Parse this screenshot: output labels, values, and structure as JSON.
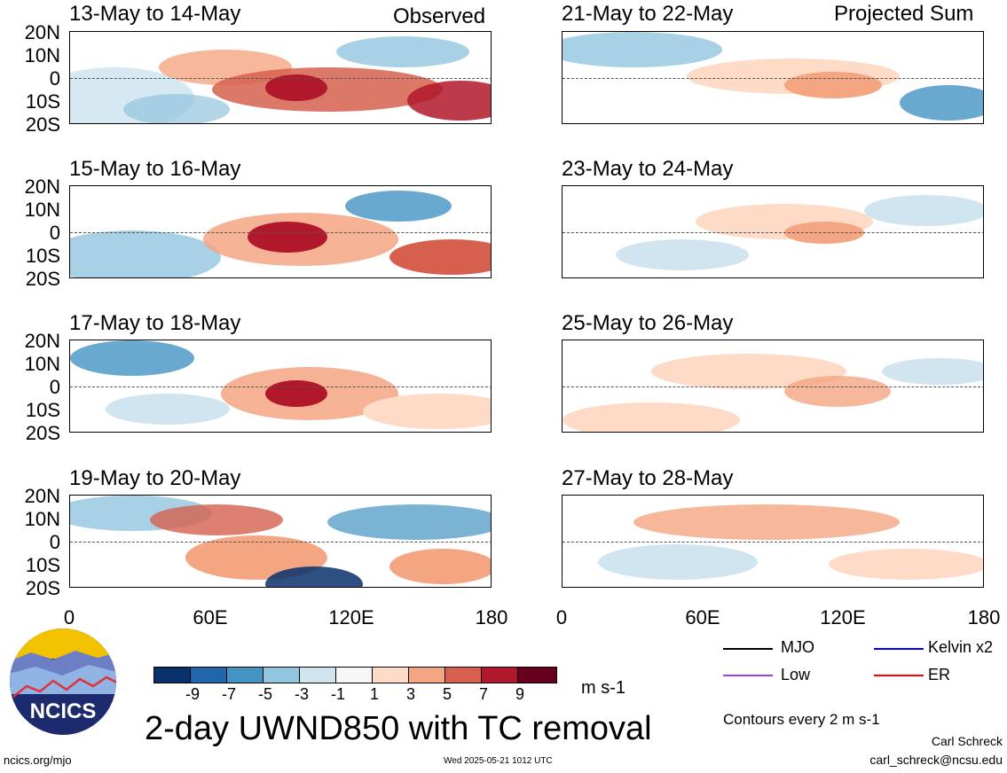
{
  "panels": {
    "left": [
      {
        "title": "13-May to 14-May",
        "tag": "Observed"
      },
      {
        "title": "15-May to 16-May",
        "tag": ""
      },
      {
        "title": "17-May to 18-May",
        "tag": ""
      },
      {
        "title": "19-May to 20-May",
        "tag": ""
      }
    ],
    "right": [
      {
        "title": "21-May to 22-May",
        "tag": "Projected Sum"
      },
      {
        "title": "23-May to 24-May",
        "tag": ""
      },
      {
        "title": "25-May to 26-May",
        "tag": ""
      },
      {
        "title": "27-May to 28-May",
        "tag": ""
      }
    ]
  },
  "axes": {
    "lat_labels": [
      "20N",
      "10N",
      "0",
      "10S",
      "20S"
    ],
    "lon_labels": [
      "0",
      "60E",
      "120E",
      "180"
    ]
  },
  "colorbar": {
    "unit": "m s-1",
    "labels": [
      "-9",
      "-7",
      "-5",
      "-3",
      "-1",
      "1",
      "3",
      "5",
      "7",
      "9"
    ],
    "colors": [
      "#08306b",
      "#2166ac",
      "#4393c3",
      "#92c5de",
      "#d1e5f0",
      "#f7f7f7",
      "#fddbc7",
      "#f4a582",
      "#d6604d",
      "#b2182b",
      "#67001f"
    ]
  },
  "legend": {
    "items": [
      {
        "label": "MJO",
        "color": "#000000"
      },
      {
        "label": "Kelvin x2",
        "color": "#0000ff"
      },
      {
        "label": "Low",
        "color": "#a040e0"
      },
      {
        "label": "ER",
        "color": "#ff0000"
      }
    ],
    "contour_note": "Contours every 2 m s-1"
  },
  "footer": {
    "main_title": "2-day UWND850 with TC removal",
    "logo_text": "NCICS",
    "url": "ncics.org/mjo",
    "timestamp": "Wed 2025-05-21 1012 UTC",
    "author": "Carl Schreck",
    "email": "carl_schreck@ncsu.edu"
  }
}
